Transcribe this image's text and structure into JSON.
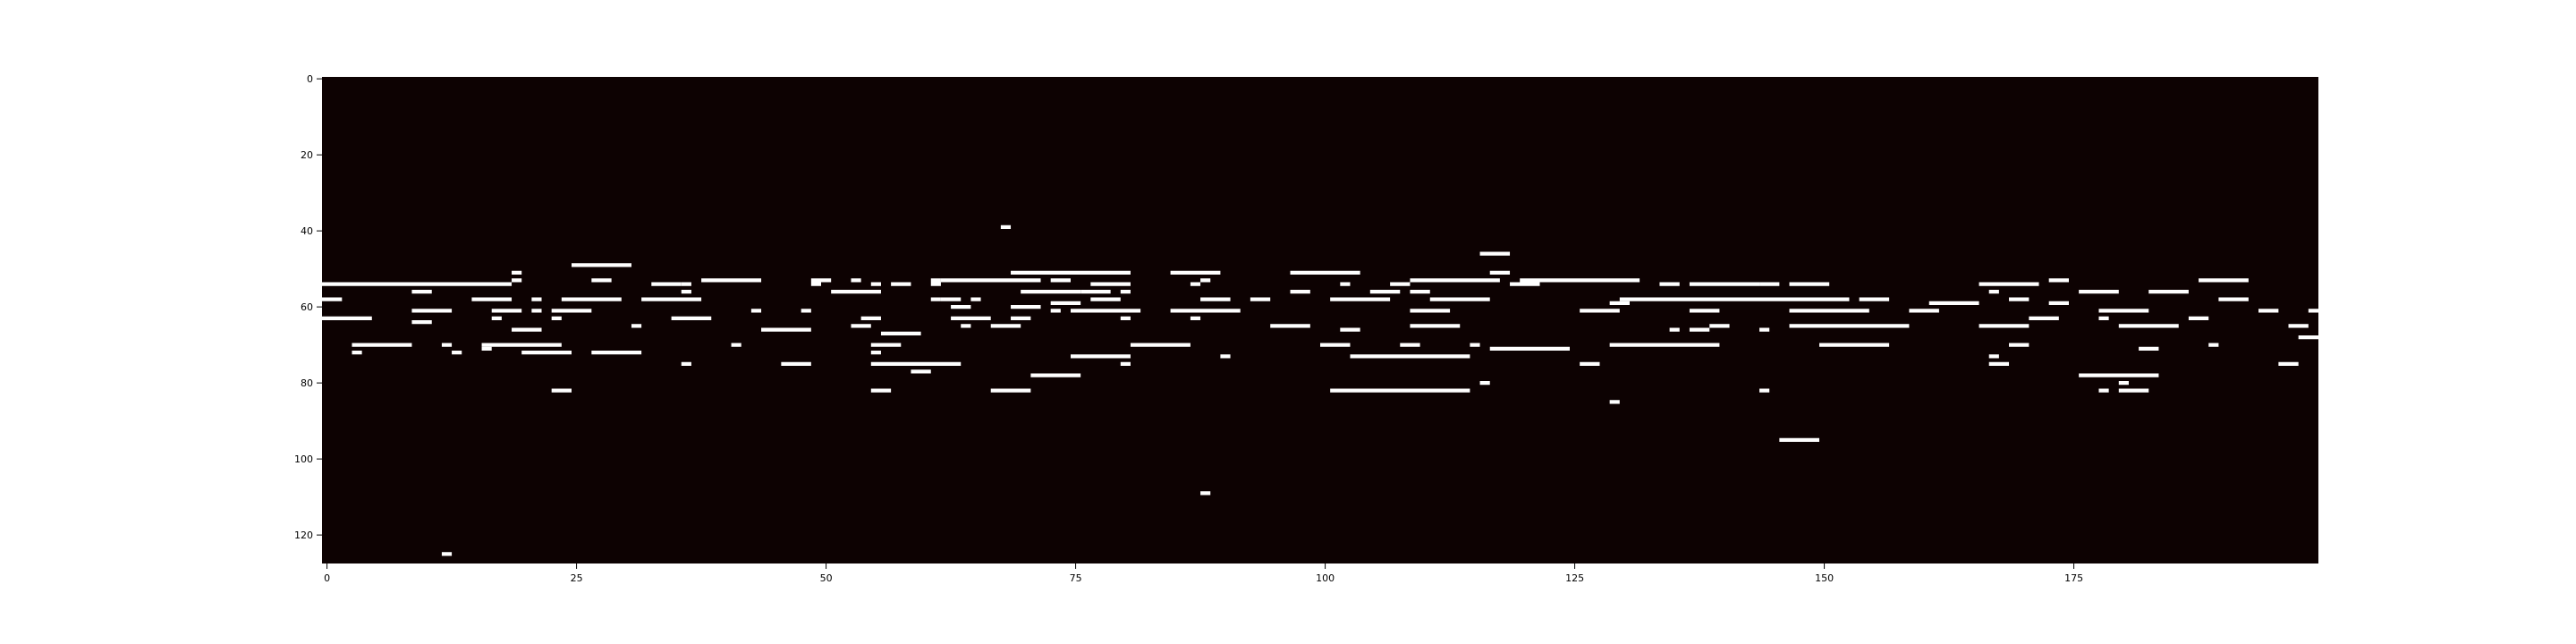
{
  "chart_data": {
    "type": "heatmap",
    "title": "",
    "xlabel": "",
    "ylabel": "",
    "xlim": [
      0,
      200
    ],
    "ylim": [
      128,
      0
    ],
    "x_ticks": [
      0,
      25,
      50,
      75,
      100,
      125,
      150,
      175
    ],
    "y_ticks": [
      0,
      20,
      40,
      60,
      80,
      100,
      120
    ],
    "colors": {
      "background": "#0d0202",
      "note": "#ffffff",
      "tick": "#000000"
    },
    "notes": [
      [
        0,
        54,
        19
      ],
      [
        0,
        58,
        2
      ],
      [
        0,
        63,
        5
      ],
      [
        3,
        70,
        6
      ],
      [
        3,
        72,
        1
      ],
      [
        9,
        56,
        2
      ],
      [
        9,
        61,
        4
      ],
      [
        9,
        64,
        2
      ],
      [
        12,
        70,
        1
      ],
      [
        12,
        125,
        1
      ],
      [
        13,
        72,
        1
      ],
      [
        15,
        58,
        4
      ],
      [
        16,
        70,
        8
      ],
      [
        16,
        71,
        1
      ],
      [
        17,
        61,
        3
      ],
      [
        17,
        63,
        1
      ],
      [
        19,
        51,
        1
      ],
      [
        19,
        53,
        1
      ],
      [
        19,
        66,
        3
      ],
      [
        20,
        72,
        5
      ],
      [
        21,
        58,
        1
      ],
      [
        21,
        61,
        1
      ],
      [
        23,
        61,
        4
      ],
      [
        23,
        63,
        1
      ],
      [
        23,
        82,
        2
      ],
      [
        24,
        58,
        6
      ],
      [
        25,
        49,
        6
      ],
      [
        27,
        53,
        2
      ],
      [
        27,
        72,
        5
      ],
      [
        31,
        65,
        1
      ],
      [
        32,
        58,
        6
      ],
      [
        33,
        54,
        3
      ],
      [
        35,
        63,
        4
      ],
      [
        36,
        54,
        1
      ],
      [
        36,
        56,
        1
      ],
      [
        36,
        75,
        1
      ],
      [
        38,
        53,
        6
      ],
      [
        41,
        70,
        1
      ],
      [
        43,
        61,
        1
      ],
      [
        44,
        66,
        5
      ],
      [
        46,
        75,
        3
      ],
      [
        48,
        61,
        1
      ],
      [
        49,
        53,
        2
      ],
      [
        49,
        54,
        1
      ],
      [
        51,
        56,
        5
      ],
      [
        53,
        53,
        1
      ],
      [
        53,
        65,
        2
      ],
      [
        54,
        63,
        2
      ],
      [
        55,
        54,
        1
      ],
      [
        55,
        70,
        3
      ],
      [
        55,
        72,
        1
      ],
      [
        55,
        75,
        9
      ],
      [
        55,
        82,
        2
      ],
      [
        56,
        67,
        4
      ],
      [
        57,
        54,
        2
      ],
      [
        59,
        77,
        2
      ],
      [
        61,
        53,
        1
      ],
      [
        61,
        54,
        1
      ],
      [
        61,
        58,
        1
      ],
      [
        62,
        53,
        10
      ],
      [
        62,
        58,
        2
      ],
      [
        63,
        60,
        2
      ],
      [
        63,
        63,
        4
      ],
      [
        64,
        65,
        1
      ],
      [
        65,
        58,
        1
      ],
      [
        67,
        65,
        3
      ],
      [
        67,
        82,
        4
      ],
      [
        68,
        39,
        1
      ],
      [
        69,
        51,
        12
      ],
      [
        69,
        60,
        3
      ],
      [
        69,
        63,
        2
      ],
      [
        70,
        56,
        6
      ],
      [
        71,
        78,
        5
      ],
      [
        73,
        53,
        2
      ],
      [
        73,
        59,
        3
      ],
      [
        73,
        61,
        1
      ],
      [
        75,
        61,
        7
      ],
      [
        75,
        73,
        6
      ],
      [
        76,
        56,
        3
      ],
      [
        77,
        54,
        4
      ],
      [
        77,
        58,
        3
      ],
      [
        80,
        56,
        1
      ],
      [
        80,
        63,
        1
      ],
      [
        80,
        75,
        1
      ],
      [
        81,
        70,
        6
      ],
      [
        85,
        51,
        5
      ],
      [
        85,
        61,
        7
      ],
      [
        87,
        54,
        1
      ],
      [
        87,
        63,
        1
      ],
      [
        88,
        53,
        1
      ],
      [
        88,
        58,
        3
      ],
      [
        88,
        109,
        1
      ],
      [
        90,
        73,
        1
      ],
      [
        93,
        58,
        2
      ],
      [
        95,
        65,
        4
      ],
      [
        97,
        56,
        2
      ],
      [
        97,
        51,
        7
      ],
      [
        100,
        70,
        3
      ],
      [
        101,
        58,
        6
      ],
      [
        101,
        82,
        14
      ],
      [
        102,
        54,
        1
      ],
      [
        102,
        66,
        2
      ],
      [
        103,
        73,
        12
      ],
      [
        105,
        56,
        3
      ],
      [
        107,
        54,
        2
      ],
      [
        108,
        70,
        2
      ],
      [
        109,
        53,
        9
      ],
      [
        109,
        56,
        2
      ],
      [
        109,
        61,
        4
      ],
      [
        109,
        65,
        5
      ],
      [
        111,
        58,
        6
      ],
      [
        115,
        70,
        1
      ],
      [
        116,
        46,
        3
      ],
      [
        116,
        80,
        1
      ],
      [
        117,
        51,
        2
      ],
      [
        117,
        71,
        8
      ],
      [
        119,
        54,
        3
      ],
      [
        120,
        53,
        12
      ],
      [
        126,
        61,
        4
      ],
      [
        126,
        75,
        2
      ],
      [
        129,
        59,
        2
      ],
      [
        129,
        70,
        11
      ],
      [
        129,
        85,
        1
      ],
      [
        130,
        58,
        23
      ],
      [
        134,
        54,
        2
      ],
      [
        135,
        66,
        1
      ],
      [
        137,
        54,
        7
      ],
      [
        137,
        61,
        3
      ],
      [
        137,
        66,
        2
      ],
      [
        139,
        65,
        2
      ],
      [
        144,
        66,
        1
      ],
      [
        144,
        82,
        1
      ],
      [
        144,
        54,
        2
      ],
      [
        146,
        95,
        4
      ],
      [
        147,
        54,
        4
      ],
      [
        147,
        61,
        8
      ],
      [
        147,
        65,
        12
      ],
      [
        150,
        70,
        7
      ],
      [
        154,
        58,
        3
      ],
      [
        159,
        61,
        3
      ],
      [
        161,
        59,
        5
      ],
      [
        166,
        54,
        6
      ],
      [
        166,
        65,
        5
      ],
      [
        167,
        56,
        1
      ],
      [
        167,
        73,
        1
      ],
      [
        167,
        75,
        2
      ],
      [
        169,
        58,
        2
      ],
      [
        169,
        70,
        2
      ],
      [
        171,
        63,
        3
      ],
      [
        173,
        53,
        2
      ],
      [
        173,
        59,
        2
      ],
      [
        176,
        78,
        8
      ],
      [
        176,
        56,
        4
      ],
      [
        178,
        61,
        5
      ],
      [
        178,
        63,
        1
      ],
      [
        178,
        82,
        1
      ],
      [
        180,
        65,
        6
      ],
      [
        180,
        80,
        1
      ],
      [
        180,
        82,
        3
      ],
      [
        182,
        71,
        2
      ],
      [
        183,
        56,
        4
      ],
      [
        187,
        63,
        2
      ],
      [
        188,
        53,
        5
      ],
      [
        189,
        70,
        1
      ],
      [
        190,
        58,
        3
      ],
      [
        194,
        61,
        2
      ],
      [
        196,
        75,
        2
      ],
      [
        197,
        65,
        2
      ],
      [
        198,
        68,
        2
      ],
      [
        199,
        61,
        1
      ]
    ]
  }
}
